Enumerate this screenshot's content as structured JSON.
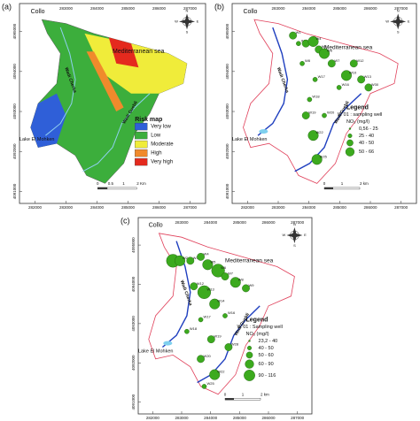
{
  "panels": [
    {
      "label": "(a)",
      "town": "Collo",
      "sea": "Mediterranean sea",
      "wadi1": "Wadi Cherka",
      "wadi2": "Wadi Guebli",
      "lake": "Lake El Mohken",
      "compass": [
        "N",
        "E",
        "S",
        "W"
      ],
      "legend_title": "Risk map",
      "legend": [
        {
          "label": "Very low",
          "color": "#2f5fd8"
        },
        {
          "label": "Low",
          "color": "#3cae3c"
        },
        {
          "label": "Moderate",
          "color": "#f0ec3a"
        },
        {
          "label": "High",
          "color": "#f08a2c"
        },
        {
          "label": "Very high",
          "color": "#e42a1e"
        }
      ],
      "scale": [
        "0",
        "0.5",
        "1",
        "2 Km"
      ],
      "xticks": [
        282000,
        283000,
        284000,
        285000,
        286000,
        287000
      ],
      "yticks": [
        4095000,
        4094000,
        4093000,
        4092000,
        4091000
      ]
    },
    {
      "label": "(b)",
      "town": "Collo",
      "sea": "Mediterranean sea",
      "wadi1": "Wadi Cherka",
      "wadi2": "Wadi Guebli",
      "lake": "Lake El Mohken",
      "compass": [
        "N",
        "E",
        "S",
        "W"
      ],
      "legend_title": "Legend",
      "well_note": "W 01 : sampling well",
      "unit": "NO₃ (mg/l)",
      "legend": [
        "0,56 - 25",
        "25 - 40",
        "40 - 50",
        "50 - 66"
      ],
      "wells": [
        "W1",
        "W2",
        "W3",
        "W4",
        "W5",
        "W6",
        "W7",
        "W8",
        "W10",
        "W12",
        "W13",
        "W16",
        "W17",
        "W18",
        "W19",
        "W20",
        "W22",
        "W25",
        "W30"
      ],
      "scale": [
        "0",
        "1",
        "2 km"
      ],
      "xticks": [
        282000,
        283000,
        284000,
        285000,
        286000,
        287000
      ],
      "yticks": [
        4095000,
        4094000,
        4093000,
        4092000,
        4091000
      ]
    },
    {
      "label": "(c)",
      "town": "Collo",
      "sea": "Mediterranean sea",
      "wadi1": "Wadi Cherka",
      "wadi2": "Wadi Guebli",
      "lake": "Lake El Mohken",
      "compass": [
        "N",
        "E",
        "S",
        "W"
      ],
      "legend_title": "Legend",
      "well_note": "W 01 : Sampling well",
      "unit": "NO₃ (mg/l)",
      "legend": [
        "23,2 - 40",
        "40 - 50",
        "50 - 60",
        "60 - 90",
        "90 - 116"
      ],
      "wells": [
        "W1",
        "W2",
        "W3",
        "W4",
        "W5",
        "W6",
        "W7",
        "W8",
        "W9",
        "W12",
        "W13",
        "W14",
        "W16",
        "W17",
        "W18",
        "W19",
        "W20",
        "W22",
        "W25",
        "W28"
      ],
      "scale": [
        "0",
        "1",
        "2 km"
      ],
      "xticks": [
        282000,
        283000,
        284000,
        285000,
        286000,
        287000
      ],
      "yticks": [
        4095000,
        4094000,
        4093000,
        4092000,
        4091000
      ]
    }
  ]
}
